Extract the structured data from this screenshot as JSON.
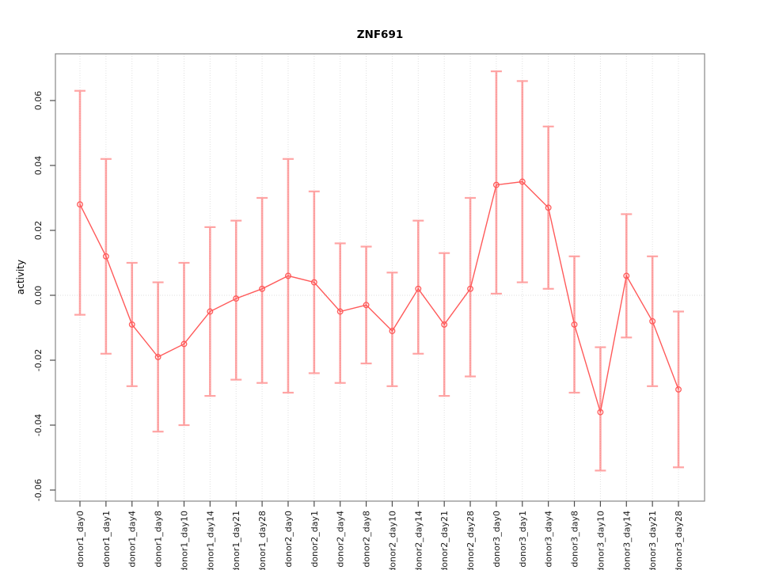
{
  "figure": {
    "title": "ZNF691",
    "y_axis_label": "activity"
  },
  "chart_data": {
    "type": "line",
    "title": "ZNF691",
    "xlabel": "",
    "ylabel": "activity",
    "ylim": [
      -0.065,
      0.0745
    ],
    "yticks": [
      -0.06,
      -0.04,
      -0.02,
      0.0,
      0.02,
      0.04,
      0.06
    ],
    "ytick_labels": [
      "-0.06",
      "-0.04",
      "-0.02",
      "0.00",
      "0.02",
      "0.04",
      "0.06"
    ],
    "grid": "dotted vertical gridline per category; dotted horizontal line at y=0; full box frame",
    "legend_position": "none",
    "marker": "open-circle",
    "categories": [
      "donor1_day0",
      "donor1_day1",
      "donor1_day4",
      "donor1_day8",
      "donor1_day10",
      "donor1_day14",
      "donor1_day21",
      "donor1_day28",
      "donor2_day0",
      "donor2_day1",
      "donor2_day4",
      "donor2_day8",
      "donor2_day10",
      "donor2_day14",
      "donor2_day21",
      "donor2_day28",
      "donor3_day0",
      "donor3_day1",
      "donor3_day4",
      "donor3_day8",
      "donor3_day10",
      "donor3_day14",
      "donor3_day21",
      "donor3_day28"
    ],
    "series": [
      {
        "name": "activity",
        "values": [
          0.028,
          0.012,
          -0.009,
          -0.019,
          -0.015,
          -0.005,
          -0.001,
          0.002,
          0.006,
          0.004,
          -0.005,
          -0.003,
          -0.011,
          0.002,
          -0.009,
          0.002,
          0.034,
          0.035,
          0.027,
          -0.009,
          -0.036,
          0.006,
          -0.008,
          -0.029
        ],
        "error_low": [
          -0.006,
          -0.018,
          -0.028,
          -0.042,
          -0.04,
          -0.031,
          -0.026,
          -0.027,
          -0.03,
          -0.024,
          -0.027,
          -0.021,
          -0.028,
          -0.018,
          -0.031,
          -0.025,
          0.0005,
          0.004,
          0.002,
          -0.03,
          -0.054,
          -0.013,
          -0.028,
          -0.053
        ],
        "error_high": [
          0.063,
          0.042,
          0.01,
          0.004,
          0.01,
          0.021,
          0.023,
          0.03,
          0.042,
          0.032,
          0.016,
          0.015,
          0.007,
          0.023,
          0.013,
          0.03,
          0.069,
          0.066,
          0.052,
          0.012,
          -0.016,
          0.025,
          0.012,
          -0.005
        ]
      }
    ],
    "colors": {
      "line": "#ff5a5a",
      "point": "#ff5a5a",
      "error_bar": "#ff5a5a",
      "gridline": "#e0e0e0",
      "zero_line": "#dcdcdc",
      "frame": "#878787",
      "tick": "#4d4d4d",
      "text": "#1a1a1a",
      "background": "#ffffff"
    }
  }
}
